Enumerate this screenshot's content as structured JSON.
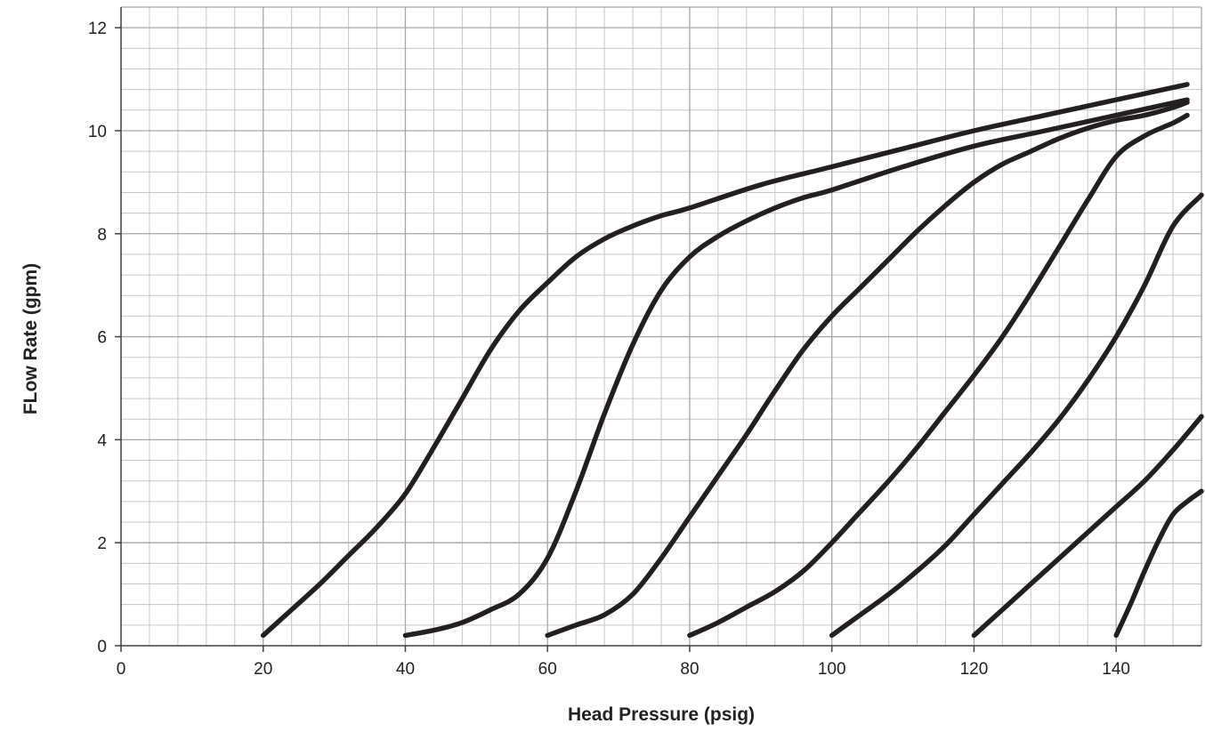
{
  "chart_data": {
    "type": "line",
    "title": "",
    "xlabel": "Head Pressure (psig)",
    "ylabel": "FLow Rate (gpm)",
    "xlim": [
      0,
      152
    ],
    "ylim": [
      0,
      12.4
    ],
    "x_ticks": [
      "0",
      "20",
      "40",
      "60",
      "80",
      "100",
      "120",
      "140"
    ],
    "y_ticks": [
      "0",
      "2",
      "4",
      "6",
      "8",
      "10",
      "12"
    ],
    "grid": true,
    "legend": "none",
    "line_color": "#231f20",
    "grid_color": "#a6a6a6",
    "series": [
      {
        "x": [
          20,
          24,
          28,
          32,
          36,
          40,
          44,
          48,
          52,
          56,
          60,
          64,
          68,
          72,
          76,
          80,
          90,
          100,
          110,
          120,
          130,
          140,
          150
        ],
        "y": [
          0.2,
          0.7,
          1.2,
          1.75,
          2.3,
          2.95,
          3.85,
          4.8,
          5.75,
          6.5,
          7.05,
          7.55,
          7.9,
          8.15,
          8.35,
          8.5,
          8.95,
          9.3,
          9.65,
          10.0,
          10.3,
          10.6,
          10.9
        ]
      },
      {
        "x": [
          40,
          44,
          48,
          52,
          56,
          60,
          64,
          68,
          72,
          76,
          80,
          84,
          88,
          92,
          96,
          100,
          110,
          120,
          130,
          140,
          150
        ],
        "y": [
          0.2,
          0.3,
          0.45,
          0.7,
          1.0,
          1.7,
          3.0,
          4.5,
          5.85,
          6.9,
          7.55,
          7.95,
          8.25,
          8.5,
          8.7,
          8.85,
          9.3,
          9.7,
          10.0,
          10.3,
          10.6
        ]
      },
      {
        "x": [
          60,
          64,
          68,
          72,
          76,
          80,
          84,
          88,
          92,
          96,
          100,
          104,
          108,
          112,
          116,
          120,
          124,
          128,
          132,
          136,
          140,
          144,
          148,
          150
        ],
        "y": [
          0.2,
          0.4,
          0.6,
          1.0,
          1.7,
          2.5,
          3.3,
          4.1,
          4.95,
          5.75,
          6.4,
          6.95,
          7.5,
          8.05,
          8.55,
          9.0,
          9.35,
          9.6,
          9.85,
          10.05,
          10.2,
          10.3,
          10.45,
          10.55
        ]
      },
      {
        "x": [
          80,
          84,
          88,
          92,
          96,
          100,
          104,
          108,
          112,
          116,
          120,
          124,
          128,
          132,
          136,
          140,
          144,
          148,
          150
        ],
        "y": [
          0.2,
          0.45,
          0.75,
          1.05,
          1.45,
          2.0,
          2.6,
          3.2,
          3.85,
          4.55,
          5.25,
          6.0,
          6.85,
          7.75,
          8.65,
          9.5,
          9.9,
          10.15,
          10.3
        ]
      },
      {
        "x": [
          100,
          104,
          108,
          112,
          116,
          120,
          124,
          128,
          132,
          136,
          140,
          144,
          148,
          152
        ],
        "y": [
          0.2,
          0.6,
          1.0,
          1.45,
          1.95,
          2.55,
          3.15,
          3.75,
          4.4,
          5.15,
          6.0,
          7.0,
          8.15,
          8.75
        ]
      },
      {
        "x": [
          120,
          124,
          128,
          132,
          136,
          140,
          144,
          148,
          152
        ],
        "y": [
          0.2,
          0.7,
          1.2,
          1.7,
          2.2,
          2.7,
          3.2,
          3.8,
          4.45
        ]
      },
      {
        "x": [
          140,
          142,
          144,
          146,
          148,
          150,
          152
        ],
        "y": [
          0.2,
          0.8,
          1.45,
          2.05,
          2.55,
          2.8,
          3.0
        ]
      }
    ]
  }
}
